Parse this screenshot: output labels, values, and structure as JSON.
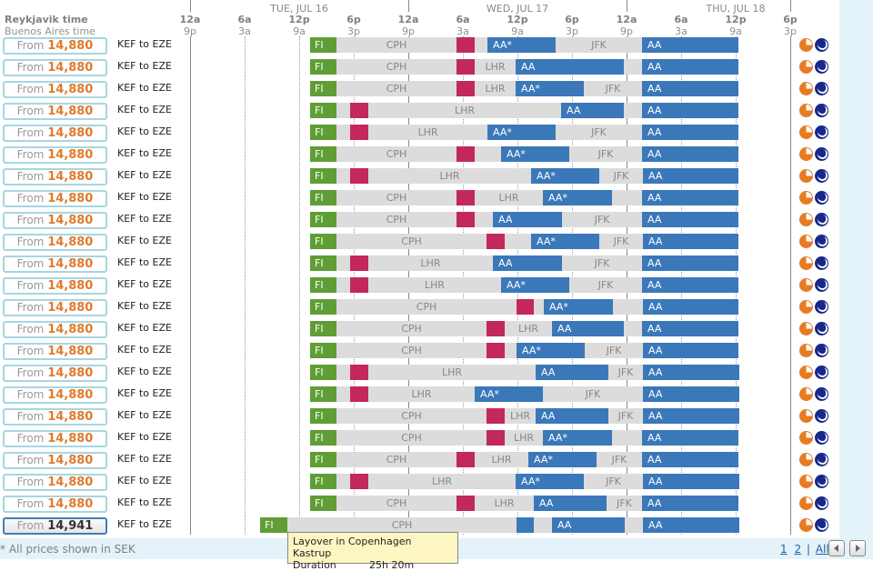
{
  "header": {
    "primary_tz": "Reykjavik time",
    "secondary_tz": "Buenos Aires time",
    "days": [
      "TUE, JUL 16",
      "WED, JUL 17",
      "THU, JUL 18"
    ],
    "ticks": [
      {
        "top": "12a",
        "bot": "9p"
      },
      {
        "top": "6a",
        "bot": "3a"
      },
      {
        "top": "12p",
        "bot": "9a"
      },
      {
        "top": "6p",
        "bot": "3p"
      },
      {
        "top": "12a",
        "bot": "9p"
      },
      {
        "top": "6a",
        "bot": "3a"
      },
      {
        "top": "12p",
        "bot": "9a"
      },
      {
        "top": "6p",
        "bot": "3p"
      },
      {
        "top": "12a",
        "bot": "9p"
      },
      {
        "top": "6a",
        "bot": "3a"
      },
      {
        "top": "12p",
        "bot": "9a"
      },
      {
        "top": "6p",
        "bot": "3p"
      }
    ]
  },
  "colors": {
    "fi": "#5f9e35",
    "aa": "#3b78b9",
    "layover": "#dcdcdc",
    "overnight": "#c3285a",
    "price": "#e07b2e"
  },
  "rows": [
    {
      "prefix": "From",
      "price": "14,880",
      "route": "KEF to EZE",
      "segs": [
        [
          "fi",
          13.2,
          16.1,
          "FI"
        ],
        [
          "lay",
          16.1,
          29.3,
          "CPH"
        ],
        [
          "red",
          29.3,
          31.3,
          ""
        ],
        [
          "lay",
          31.3,
          32.7,
          ""
        ],
        [
          "aa",
          32.7,
          40.2,
          "AA*"
        ],
        [
          "lay",
          40.2,
          49.7,
          "JFK"
        ],
        [
          "aa",
          49.7,
          60.3,
          "AA"
        ]
      ]
    },
    {
      "prefix": "From",
      "price": "14,880",
      "route": "KEF to EZE",
      "segs": [
        [
          "fi",
          13.2,
          16.1,
          "FI"
        ],
        [
          "lay",
          16.1,
          29.3,
          "CPH"
        ],
        [
          "red",
          29.3,
          31.3,
          ""
        ],
        [
          "lay",
          31.3,
          35.8,
          "LHR"
        ],
        [
          "aa",
          35.8,
          47.7,
          "AA"
        ],
        [
          "lay",
          47.7,
          49.7,
          ""
        ],
        [
          "aa",
          49.7,
          60.3,
          "AA"
        ]
      ]
    },
    {
      "prefix": "From",
      "price": "14,880",
      "route": "KEF to EZE",
      "segs": [
        [
          "fi",
          13.2,
          16.1,
          "FI"
        ],
        [
          "lay",
          16.1,
          29.3,
          "CPH"
        ],
        [
          "red",
          29.3,
          31.3,
          ""
        ],
        [
          "lay",
          31.3,
          35.8,
          "LHR"
        ],
        [
          "aa",
          35.8,
          43.3,
          "AA*"
        ],
        [
          "lay",
          43.3,
          49.7,
          "JFK"
        ],
        [
          "aa",
          49.7,
          60.3,
          "AA"
        ]
      ]
    },
    {
      "prefix": "From",
      "price": "14,880",
      "route": "KEF to EZE",
      "segs": [
        [
          "fi",
          13.2,
          16.1,
          "FI"
        ],
        [
          "lay",
          16.1,
          17.6,
          ""
        ],
        [
          "red",
          17.6,
          19.6,
          ""
        ],
        [
          "lay",
          19.6,
          40.8,
          "LHR"
        ],
        [
          "aa",
          40.8,
          47.7,
          "AA"
        ],
        [
          "lay",
          47.7,
          49.7,
          ""
        ],
        [
          "aa",
          49.7,
          60.3,
          "AA"
        ]
      ]
    },
    {
      "prefix": "From",
      "price": "14,880",
      "route": "KEF to EZE",
      "segs": [
        [
          "fi",
          13.2,
          16.1,
          "FI"
        ],
        [
          "lay",
          16.1,
          17.6,
          ""
        ],
        [
          "red",
          17.6,
          19.6,
          ""
        ],
        [
          "lay",
          19.6,
          32.7,
          "LHR"
        ],
        [
          "aa",
          32.7,
          40.2,
          "AA*"
        ],
        [
          "lay",
          40.2,
          49.7,
          "JFK"
        ],
        [
          "aa",
          49.7,
          60.3,
          "AA"
        ]
      ]
    },
    {
      "prefix": "From",
      "price": "14,880",
      "route": "KEF to EZE",
      "segs": [
        [
          "fi",
          13.2,
          16.1,
          "FI"
        ],
        [
          "lay",
          16.1,
          29.3,
          "CPH"
        ],
        [
          "red",
          29.3,
          31.3,
          ""
        ],
        [
          "lay",
          31.3,
          34.2,
          ""
        ],
        [
          "aa",
          34.2,
          41.7,
          "AA*"
        ],
        [
          "lay",
          41.7,
          49.7,
          "JFK"
        ],
        [
          "aa",
          49.7,
          60.3,
          "AA"
        ]
      ]
    },
    {
      "prefix": "From",
      "price": "14,880",
      "route": "KEF to EZE",
      "segs": [
        [
          "fi",
          13.2,
          16.1,
          "FI"
        ],
        [
          "lay",
          16.1,
          17.6,
          ""
        ],
        [
          "red",
          17.6,
          19.6,
          ""
        ],
        [
          "lay",
          19.6,
          37.5,
          "LHR"
        ],
        [
          "aa",
          37.5,
          45.0,
          "AA*"
        ],
        [
          "lay",
          45.0,
          49.8,
          "JFK"
        ],
        [
          "aa",
          49.8,
          60.3,
          "AA"
        ]
      ]
    },
    {
      "prefix": "From",
      "price": "14,880",
      "route": "KEF to EZE",
      "segs": [
        [
          "fi",
          13.2,
          16.1,
          "FI"
        ],
        [
          "lay",
          16.1,
          29.3,
          "CPH"
        ],
        [
          "red",
          29.3,
          31.3,
          ""
        ],
        [
          "lay",
          31.3,
          38.8,
          "LHR"
        ],
        [
          "aa",
          38.8,
          46.4,
          "AA*"
        ],
        [
          "lay",
          46.4,
          49.7,
          ""
        ],
        [
          "aa",
          49.7,
          60.3,
          "AA"
        ]
      ]
    },
    {
      "prefix": "From",
      "price": "14,880",
      "route": "KEF to EZE",
      "segs": [
        [
          "fi",
          13.2,
          16.1,
          "FI"
        ],
        [
          "lay",
          16.1,
          29.3,
          "CPH"
        ],
        [
          "red",
          29.3,
          31.3,
          ""
        ],
        [
          "lay",
          31.3,
          33.3,
          ""
        ],
        [
          "aa",
          33.3,
          40.9,
          "AA"
        ],
        [
          "lay",
          40.9,
          49.7,
          "JFK"
        ],
        [
          "aa",
          49.7,
          60.3,
          "AA"
        ]
      ]
    },
    {
      "prefix": "From",
      "price": "14,880",
      "route": "KEF to EZE",
      "segs": [
        [
          "fi",
          13.2,
          16.1,
          "FI"
        ],
        [
          "lay",
          16.1,
          32.6,
          "CPH"
        ],
        [
          "red",
          32.6,
          34.6,
          ""
        ],
        [
          "lay",
          34.6,
          37.5,
          ""
        ],
        [
          "aa",
          37.5,
          45.0,
          "AA*"
        ],
        [
          "lay",
          45.0,
          49.8,
          "JFK"
        ],
        [
          "aa",
          49.8,
          60.3,
          "AA"
        ]
      ]
    },
    {
      "prefix": "From",
      "price": "14,880",
      "route": "KEF to EZE",
      "segs": [
        [
          "fi",
          13.2,
          16.1,
          "FI"
        ],
        [
          "lay",
          16.1,
          17.6,
          ""
        ],
        [
          "red",
          17.6,
          19.6,
          ""
        ],
        [
          "lay",
          19.6,
          33.3,
          "LHR"
        ],
        [
          "aa",
          33.3,
          40.9,
          "AA"
        ],
        [
          "lay",
          40.9,
          49.7,
          "JFK"
        ],
        [
          "aa",
          49.7,
          60.3,
          "AA"
        ]
      ]
    },
    {
      "prefix": "From",
      "price": "14,880",
      "route": "KEF to EZE",
      "segs": [
        [
          "fi",
          13.2,
          16.1,
          "FI"
        ],
        [
          "lay",
          16.1,
          17.6,
          ""
        ],
        [
          "red",
          17.6,
          19.6,
          ""
        ],
        [
          "lay",
          19.6,
          34.2,
          "LHR"
        ],
        [
          "aa",
          34.2,
          41.7,
          "AA*"
        ],
        [
          "lay",
          41.7,
          49.7,
          "JFK"
        ],
        [
          "aa",
          49.7,
          60.3,
          "AA"
        ]
      ]
    },
    {
      "prefix": "From",
      "price": "14,880",
      "route": "KEF to EZE",
      "segs": [
        [
          "fi",
          13.2,
          16.1,
          "FI"
        ],
        [
          "lay",
          16.1,
          35.9,
          "CPH"
        ],
        [
          "red",
          35.9,
          37.8,
          ""
        ],
        [
          "lay",
          37.8,
          38.9,
          ""
        ],
        [
          "aa",
          38.9,
          46.5,
          "AA*"
        ],
        [
          "lay",
          46.5,
          49.8,
          ""
        ],
        [
          "aa",
          49.8,
          60.3,
          "AA"
        ]
      ]
    },
    {
      "prefix": "From",
      "price": "14,880",
      "route": "KEF to EZE",
      "segs": [
        [
          "fi",
          13.2,
          16.1,
          "FI"
        ],
        [
          "lay",
          16.1,
          32.6,
          "CPH"
        ],
        [
          "red",
          32.6,
          34.6,
          ""
        ],
        [
          "lay",
          34.6,
          39.8,
          "LHR"
        ],
        [
          "aa",
          39.8,
          47.7,
          "AA"
        ],
        [
          "lay",
          47.7,
          49.7,
          ""
        ],
        [
          "aa",
          49.7,
          60.3,
          "AA"
        ]
      ]
    },
    {
      "prefix": "From",
      "price": "14,880",
      "route": "KEF to EZE",
      "segs": [
        [
          "fi",
          13.2,
          16.1,
          "FI"
        ],
        [
          "lay",
          16.1,
          32.6,
          "CPH"
        ],
        [
          "red",
          32.6,
          34.6,
          ""
        ],
        [
          "lay",
          34.6,
          35.9,
          ""
        ],
        [
          "aa",
          35.9,
          43.4,
          "AA*"
        ],
        [
          "lay",
          43.4,
          49.8,
          "JFK"
        ],
        [
          "aa",
          49.8,
          60.3,
          "AA"
        ]
      ]
    },
    {
      "prefix": "From",
      "price": "14,880",
      "route": "KEF to EZE",
      "segs": [
        [
          "fi",
          13.2,
          16.1,
          "FI"
        ],
        [
          "lay",
          16.1,
          17.6,
          ""
        ],
        [
          "red",
          17.6,
          19.6,
          ""
        ],
        [
          "lay",
          19.6,
          38.0,
          "LHR"
        ],
        [
          "aa",
          38.0,
          46.0,
          "AA"
        ],
        [
          "lay",
          46.0,
          49.8,
          "JFK"
        ],
        [
          "aa",
          49.8,
          60.4,
          "AA"
        ]
      ]
    },
    {
      "prefix": "From",
      "price": "14,880",
      "route": "KEF to EZE",
      "segs": [
        [
          "fi",
          13.2,
          16.1,
          "FI"
        ],
        [
          "lay",
          16.1,
          17.6,
          ""
        ],
        [
          "red",
          17.6,
          19.6,
          ""
        ],
        [
          "lay",
          19.6,
          31.3,
          "LHR"
        ],
        [
          "aa",
          31.3,
          38.8,
          "AA*"
        ],
        [
          "lay",
          38.8,
          49.8,
          "JFK"
        ],
        [
          "aa",
          49.8,
          60.4,
          "AA"
        ]
      ]
    },
    {
      "prefix": "From",
      "price": "14,880",
      "route": "KEF to EZE",
      "segs": [
        [
          "fi",
          13.2,
          16.1,
          "FI"
        ],
        [
          "lay",
          16.1,
          32.6,
          "CPH"
        ],
        [
          "red",
          32.6,
          34.6,
          ""
        ],
        [
          "lay",
          34.6,
          38.0,
          "LHR"
        ],
        [
          "aa",
          38.0,
          46.0,
          "AA"
        ],
        [
          "lay",
          46.0,
          49.8,
          "JFK"
        ],
        [
          "aa",
          49.8,
          60.4,
          "AA"
        ]
      ]
    },
    {
      "prefix": "From",
      "price": "14,880",
      "route": "KEF to EZE",
      "segs": [
        [
          "fi",
          13.2,
          16.1,
          "FI"
        ],
        [
          "lay",
          16.1,
          32.6,
          "CPH"
        ],
        [
          "red",
          32.6,
          34.6,
          ""
        ],
        [
          "lay",
          34.6,
          38.8,
          "LHR"
        ],
        [
          "aa",
          38.8,
          46.4,
          "AA*"
        ],
        [
          "lay",
          46.4,
          49.7,
          ""
        ],
        [
          "aa",
          49.7,
          60.3,
          "AA"
        ]
      ]
    },
    {
      "prefix": "From",
      "price": "14,880",
      "route": "KEF to EZE",
      "segs": [
        [
          "fi",
          13.2,
          16.1,
          "FI"
        ],
        [
          "lay",
          16.1,
          29.3,
          "CPH"
        ],
        [
          "red",
          29.3,
          31.3,
          ""
        ],
        [
          "lay",
          31.3,
          37.2,
          "LHR"
        ],
        [
          "aa",
          37.2,
          44.7,
          "AA*"
        ],
        [
          "lay",
          44.7,
          49.7,
          "JFK"
        ],
        [
          "aa",
          49.7,
          60.3,
          "AA"
        ]
      ]
    },
    {
      "prefix": "From",
      "price": "14,880",
      "route": "KEF to EZE",
      "segs": [
        [
          "fi",
          13.2,
          16.1,
          "FI"
        ],
        [
          "lay",
          16.1,
          17.6,
          ""
        ],
        [
          "red",
          17.6,
          19.6,
          ""
        ],
        [
          "lay",
          19.6,
          35.8,
          "LHR"
        ],
        [
          "aa",
          35.8,
          43.3,
          "AA*"
        ],
        [
          "lay",
          43.3,
          49.8,
          "JFK"
        ],
        [
          "aa",
          49.8,
          60.4,
          "AA"
        ]
      ]
    },
    {
      "prefix": "From",
      "price": "14,880",
      "route": "KEF to EZE",
      "segs": [
        [
          "fi",
          13.2,
          16.1,
          "FI"
        ],
        [
          "lay",
          16.1,
          29.3,
          "CPH"
        ],
        [
          "red",
          29.3,
          31.3,
          ""
        ],
        [
          "lay",
          31.3,
          37.8,
          "LHR"
        ],
        [
          "aa",
          37.8,
          45.8,
          "AA"
        ],
        [
          "lay",
          45.8,
          49.7,
          "JFK"
        ],
        [
          "aa",
          49.7,
          60.3,
          "AA"
        ]
      ]
    },
    {
      "prefix": "From",
      "price": "14,941",
      "route": "KEF to EZE",
      "selected": true,
      "segs": [
        [
          "fi",
          7.7,
          10.7,
          "FI"
        ],
        [
          "lay",
          10.7,
          35.9,
          "CPH"
        ],
        [
          "aa",
          35.9,
          37.8,
          ""
        ],
        [
          "lay",
          37.8,
          39.8,
          ""
        ],
        [
          "aa",
          39.8,
          47.8,
          "AA"
        ],
        [
          "lay",
          47.8,
          49.8,
          ""
        ],
        [
          "aa",
          49.8,
          60.4,
          "AA"
        ]
      ]
    }
  ],
  "tooltip": {
    "line1": "Layover in Copenhagen Kastrup",
    "duration_label": "Duration",
    "duration_value": "25h 20m"
  },
  "footer": {
    "note": "* All prices shown in SEK",
    "pages": [
      "1",
      "2"
    ],
    "all_label": "All",
    "prev_icon": "prev-arrow-icon",
    "next_icon": "next-arrow-icon"
  },
  "row_icons": [
    "daylight-icon",
    "night-icon"
  ]
}
